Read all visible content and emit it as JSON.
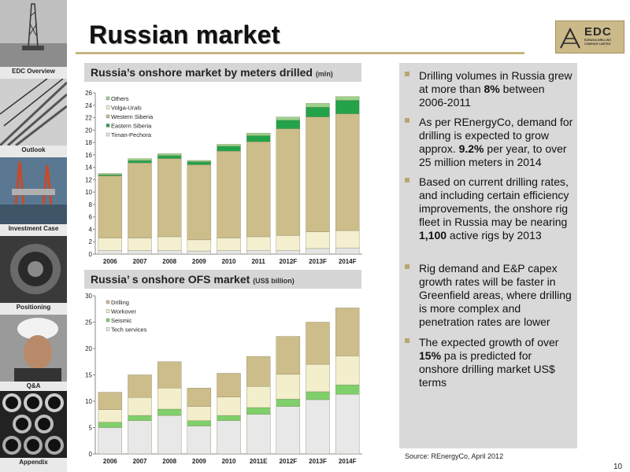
{
  "title": "Russian market",
  "logo": {
    "name": "EDC",
    "subtitle": "EURASIA DRILLING COMPANY LIMITED"
  },
  "sidebar": {
    "items": [
      {
        "label": "EDC Overview",
        "icon": "drilling-rig-image"
      },
      {
        "label": "Outlook",
        "icon": "staircase-image"
      },
      {
        "label": "Investment Case",
        "icon": "offshore-rig-image"
      },
      {
        "label": "Positioning",
        "icon": "drill-bit-image"
      },
      {
        "label": "Q&A",
        "icon": "worker-image"
      },
      {
        "label": "Appendix",
        "icon": "pipes-image"
      }
    ]
  },
  "chart1_header": {
    "title": "Russia’s onshore market by meters drilled",
    "unit": "(mln)"
  },
  "chart2_header": {
    "title": "Russia’ s onshore OFS market",
    "unit": "(US$ billion)"
  },
  "chart_data": [
    {
      "type": "bar",
      "stacked": true,
      "title": "Russia’s onshore market by meters drilled (mln)",
      "categories": [
        "2006",
        "2007",
        "2008",
        "2009",
        "2010",
        "2011",
        "2012F",
        "2013F",
        "2014F"
      ],
      "ylim": [
        0,
        26
      ],
      "yticks": [
        "0",
        "2",
        "4",
        "6",
        "8",
        "10",
        "12",
        "14",
        "16",
        "18",
        "20",
        "22",
        "24",
        "26"
      ],
      "legend_placement": "top-left",
      "legend": [
        "Others",
        "Volga-Urals",
        "Western Siberia",
        "Eastern Siberia",
        "Timan-Pechora"
      ],
      "series": [
        {
          "name": "Timan-Pechora",
          "color": "#e5e5e5",
          "values": [
            0.6,
            0.6,
            0.6,
            0.5,
            0.6,
            0.6,
            0.6,
            0.9,
            1.0
          ]
        },
        {
          "name": "Volga-Urals",
          "color": "#f4efcf",
          "values": [
            2.0,
            2.0,
            2.2,
            1.8,
            2.0,
            2.2,
            2.4,
            2.7,
            2.8
          ]
        },
        {
          "name": "Western Siberia",
          "color": "#cdbd8a",
          "values": [
            10.0,
            12.1,
            12.6,
            12.1,
            14.0,
            15.3,
            17.2,
            18.5,
            18.8
          ]
        },
        {
          "name": "Eastern Siberia",
          "color": "#24a24a",
          "values": [
            0.2,
            0.4,
            0.5,
            0.5,
            0.8,
            1.0,
            1.4,
            1.6,
            2.2
          ]
        },
        {
          "name": "Others",
          "color": "#9bd38a",
          "values": [
            0.2,
            0.3,
            0.3,
            0.2,
            0.3,
            0.4,
            0.5,
            0.6,
            0.6
          ]
        }
      ]
    },
    {
      "type": "bar",
      "stacked": true,
      "title": "Russia’ s onshore OFS market (US$ billion)",
      "categories": [
        "2006",
        "2007",
        "2008",
        "2009",
        "2010",
        "2011E",
        "2012F",
        "2013F",
        "2014F"
      ],
      "ylim": [
        0,
        30
      ],
      "yticks": [
        "0",
        "5",
        "10",
        "15",
        "20",
        "25",
        "30"
      ],
      "legend_placement": "top-left",
      "legend": [
        "Drilling",
        "Workover",
        "Seismic",
        "Tech services"
      ],
      "series": [
        {
          "name": "Tech services",
          "color": "#e8e8e8",
          "values": [
            5.0,
            6.3,
            7.3,
            5.3,
            6.3,
            7.5,
            9.0,
            10.3,
            11.3
          ]
        },
        {
          "name": "Seismic",
          "color": "#7fcf6a",
          "values": [
            1.0,
            1.0,
            1.2,
            1.0,
            1.0,
            1.3,
            1.4,
            1.5,
            1.8
          ]
        },
        {
          "name": "Workover",
          "color": "#f3eecb",
          "values": [
            2.4,
            3.4,
            4.0,
            2.7,
            3.5,
            4.0,
            4.7,
            5.2,
            5.5
          ]
        },
        {
          "name": "Drilling",
          "color": "#cdbd8a",
          "values": [
            3.3,
            4.3,
            5.0,
            3.5,
            4.5,
            5.7,
            7.2,
            8.0,
            9.1
          ]
        }
      ]
    }
  ],
  "bullets": [
    {
      "parts": [
        {
          "t": "Drilling volumes in Russia grew at more than ",
          "b": false
        },
        {
          "t": "8%",
          "b": true
        },
        {
          "t": " between 2006-2011",
          "b": false
        }
      ]
    },
    {
      "parts": [
        {
          "t": "As per REnergyCo, demand for drilling is expected to grow approx. ",
          "b": false
        },
        {
          "t": "9.2%",
          "b": true
        },
        {
          "t": " per year, to over 25 million meters in 2014",
          "b": false
        }
      ]
    },
    {
      "parts": [
        {
          "t": "Based on current drilling rates, and including certain efficiency improvements, the onshore rig fleet in Russia may be nearing ",
          "b": false
        },
        {
          "t": "1,100",
          "b": true
        },
        {
          "t": " active rigs by 2013",
          "b": false
        }
      ]
    },
    {
      "parts": [
        {
          "t": "Rig demand and E&P capex growth rates will be faster in Greenfield areas, where drilling is more complex and penetration rates are lower",
          "b": false
        }
      ]
    },
    {
      "parts": [
        {
          "t": "The expected growth of over ",
          "b": false
        },
        {
          "t": "15%",
          "b": true
        },
        {
          "t": " pa is predicted for onshore drilling market US$ terms",
          "b": false
        }
      ]
    }
  ],
  "source": "Source: REnergyCo, April 2012",
  "page_number": "10"
}
